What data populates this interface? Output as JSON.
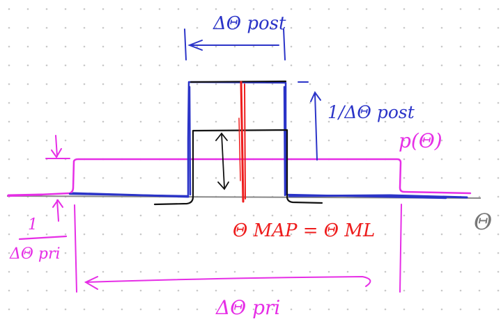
{
  "colors": {
    "prior": "#e62ee6",
    "posterior_blue": "#2b34c8",
    "posterior_black": "#111111",
    "estimate_red": "#ee1c1c",
    "axis": "#888888",
    "grid_dot": "#c8c8c8"
  },
  "labels": {
    "delta_theta_post": "ΔΘ post",
    "inv_delta_theta_post": "1/ΔΘ post",
    "p_theta": "p(Θ)",
    "theta_axis": "Θ",
    "inv_delta_theta_pri_num": "1",
    "inv_delta_theta_pri_den": "ΔΘ pri",
    "theta_map_ml": "Θ MAP = Θ ML",
    "delta_theta_pri": "ΔΘ pri"
  }
}
